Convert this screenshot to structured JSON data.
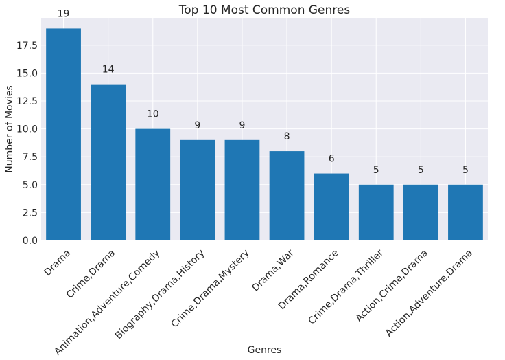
{
  "chart_data": {
    "type": "bar",
    "title": "Top 10 Most Common Genres",
    "xlabel": "Genres",
    "ylabel": "Number of Movies",
    "categories": [
      "Drama",
      "Crime,Drama",
      "Animation,Adventure,Comedy",
      "Biography,Drama,History",
      "Crime,Drama,Mystery",
      "Drama,War",
      "Drama,Romance",
      "Crime,Drama,Thriller",
      "Action,Crime,Drama",
      "Action,Adventure,Drama"
    ],
    "values": [
      19,
      14,
      10,
      9,
      9,
      8,
      6,
      5,
      5,
      5
    ],
    "data_labels": [
      "19",
      "14",
      "10",
      "9",
      "9",
      "8",
      "6",
      "5",
      "5",
      "5"
    ],
    "ylim": [
      0,
      19.95
    ],
    "yticks": [
      0,
      2.5,
      5,
      7.5,
      10,
      12.5,
      15,
      17.5
    ],
    "ytick_labels": [
      "0.0",
      "2.5",
      "5.0",
      "7.5",
      "10.0",
      "12.5",
      "15.0",
      "17.5"
    ],
    "grid": true,
    "colors": {
      "bar": "#1f77b4",
      "plot_background": "#eaeaf2",
      "grid": "#ffffff",
      "text": "#262626"
    }
  }
}
